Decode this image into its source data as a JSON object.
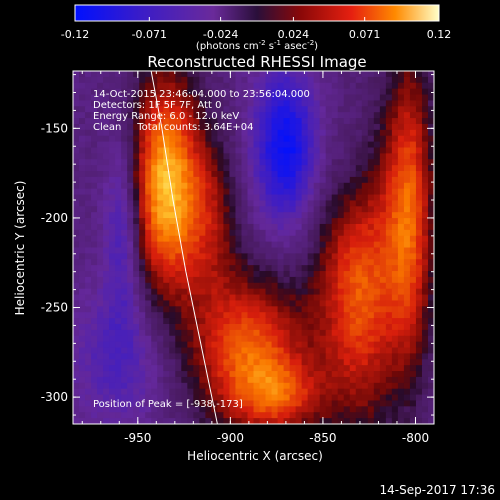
{
  "chart_data": {
    "type": "heatmap",
    "title": "Reconstructed RHESSI Image",
    "xlabel": "Heliocentric X (arcsec)",
    "ylabel": "Heliocentric Y (arcsec)",
    "xlim": [
      -985,
      -790
    ],
    "ylim": [
      -315,
      -118
    ],
    "xticks": [
      -950,
      -900,
      -850,
      -800
    ],
    "xtick_labels": [
      "-950",
      "-900",
      "-850",
      "-800"
    ],
    "yticks": [
      -150,
      -200,
      -250,
      -300
    ],
    "ytick_labels": [
      "-150",
      "-200",
      "-250",
      "-300"
    ],
    "colorbar": {
      "range": [
        -0.12,
        0.12
      ],
      "ticks": [
        -0.12,
        -0.071,
        -0.024,
        0.024,
        0.071,
        0.12
      ],
      "tick_labels": [
        "-0.12",
        "-0.071",
        "-0.024",
        "0.024",
        "0.071",
        "0.12"
      ],
      "unit_main": "(photons cm",
      "unit_exp1": "-2",
      "unit_mid1": " s",
      "unit_exp2": "-1",
      "unit_mid2": " asec",
      "unit_exp3": "-2",
      "unit_end": ")"
    },
    "annotations": {
      "time_range": "14-Oct-2015 23:46:04.000 to 23:56:04.000",
      "detectors": "Detectors: 1F 5F 7F, Att 0",
      "energy_range": "Energy Range: 6.0 - 12.0 keV",
      "method": "Clean     Total counts: 3.64E+04",
      "peak": "Position of Peak = [-938,-173]"
    },
    "peak": {
      "x": -938,
      "y": -173
    },
    "sources": [
      {
        "x": -935,
        "y": -182,
        "sx": 13,
        "sy": 42,
        "amp": 0.12
      },
      {
        "x": -911,
        "y": -200,
        "sx": 11,
        "sy": 33,
        "amp": 0.045
      },
      {
        "x": -890,
        "y": -275,
        "sx": 22,
        "sy": 30,
        "amp": 0.09
      },
      {
        "x": -872,
        "y": -300,
        "sx": 16,
        "sy": 14,
        "amp": 0.05
      },
      {
        "x": -830,
        "y": -235,
        "sx": 16,
        "sy": 55,
        "amp": 0.09
      },
      {
        "x": -803,
        "y": -195,
        "sx": 9,
        "sy": 60,
        "amp": 0.08
      },
      {
        "x": -870,
        "y": -160,
        "sx": 12,
        "sy": 30,
        "amp": -0.085
      },
      {
        "x": -958,
        "y": -205,
        "sx": 7,
        "sy": 35,
        "amp": -0.045
      },
      {
        "x": -835,
        "y": -175,
        "sx": 10,
        "sy": 30,
        "amp": -0.025
      },
      {
        "x": -960,
        "y": -278,
        "sx": 18,
        "sy": 28,
        "amp": -0.035
      }
    ],
    "grid": false
  },
  "footer": {
    "date": "14-Sep-2017 17:36"
  }
}
